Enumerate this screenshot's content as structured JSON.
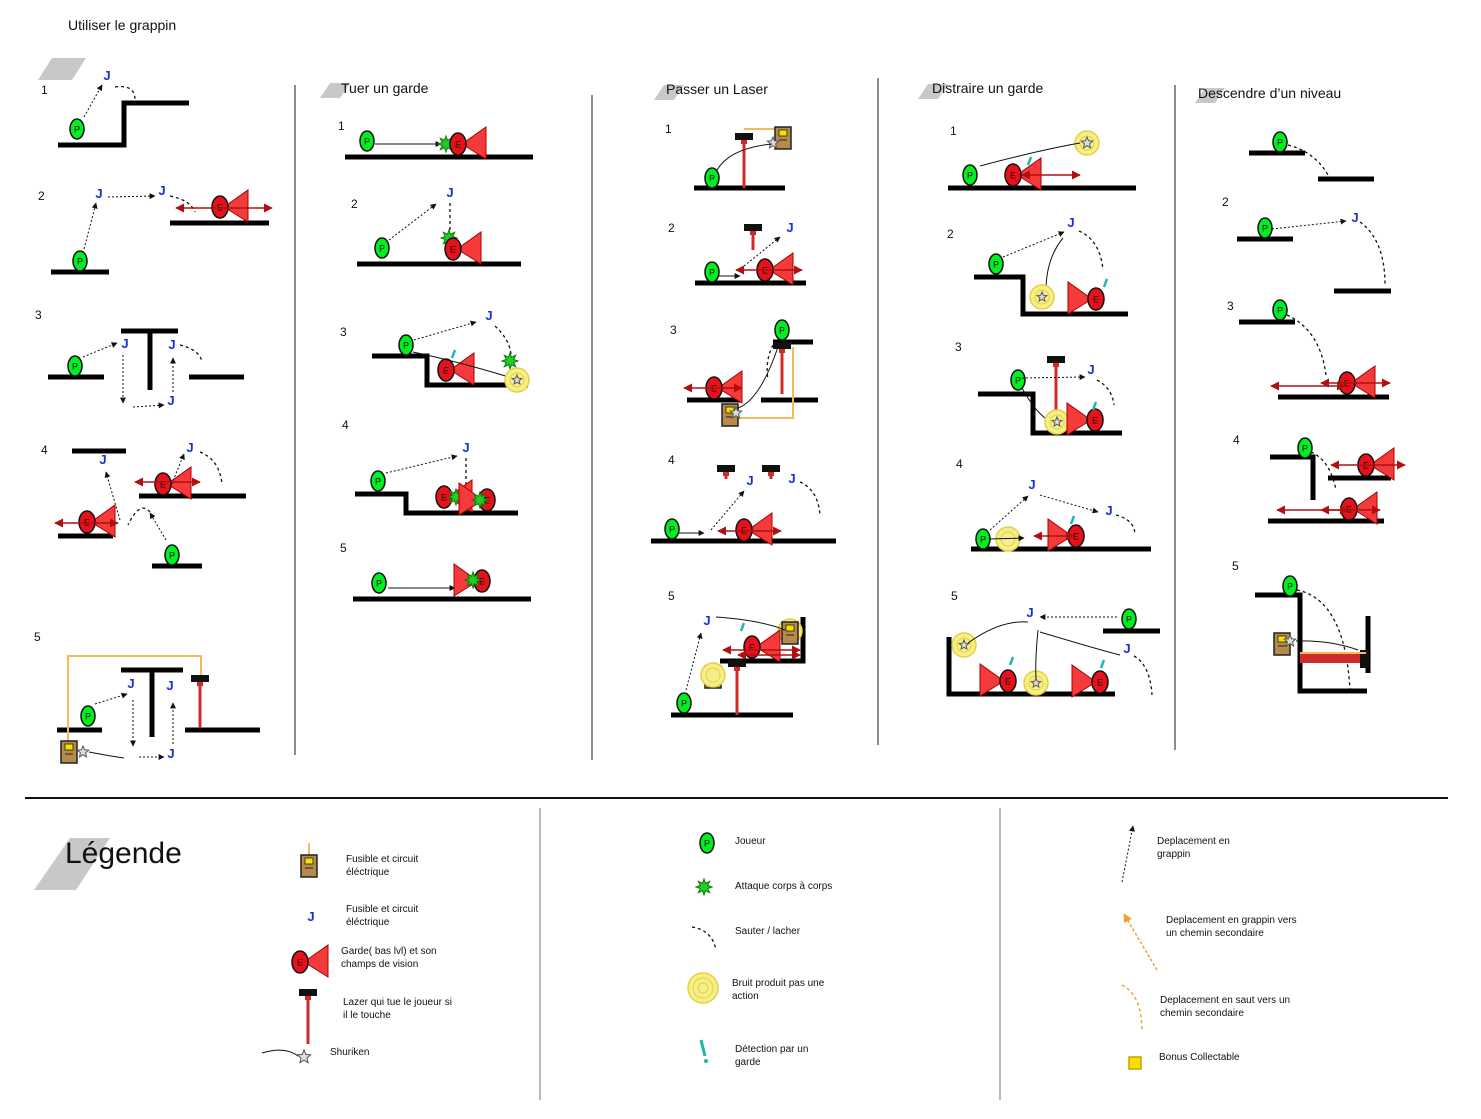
{
  "page_title": "Utiliser le grappin",
  "colors": {
    "player": "#00ee22",
    "guard": "#e8101a",
    "vision_cone": "#f43a3a",
    "grapple_point": "#1a2ee0",
    "laser": "#d22a2a",
    "circuit_wire": "#f5b85a",
    "noise": "#f5ef8a",
    "detection": "#1fb6b0",
    "bonus": "#f5e000",
    "platform": "#000000",
    "section_label_bg": "#c8c8c8"
  },
  "columns": [
    {
      "title": "",
      "steps": [
        "1",
        "2",
        "3",
        "4",
        "5"
      ]
    },
    {
      "title": "Tuer un garde",
      "steps": [
        "1",
        "2",
        "3",
        "4",
        "5"
      ]
    },
    {
      "title": "Passer un Laser",
      "steps": [
        "1",
        "2",
        "3",
        "4",
        "5"
      ]
    },
    {
      "title": "Distraire un garde",
      "steps": [
        "1",
        "2",
        "3",
        "4",
        "5"
      ]
    },
    {
      "title": "Descendre d’un niveau",
      "steps": [
        "2",
        "3",
        "4",
        "5"
      ]
    }
  ],
  "glyphs": {
    "player": "P",
    "guard": "E",
    "grapple": "J"
  },
  "legend": {
    "title": "Légende",
    "items": [
      {
        "icon": "fuse-box-icon",
        "text": "Fusible et circuit éléctrique"
      },
      {
        "icon": "grapple-point-icon",
        "text": "Fusible et circuit éléctrique"
      },
      {
        "icon": "guard-icon",
        "text": "Garde( bas lvl) et son champs de vision"
      },
      {
        "icon": "laser-icon",
        "text": "Lazer qui tue le joueur si il le touche"
      },
      {
        "icon": "shuriken-icon",
        "text": "Shuriken"
      },
      {
        "icon": "player-icon",
        "text": "Joueur"
      },
      {
        "icon": "melee-attack-icon",
        "text": "Attaque corps à corps"
      },
      {
        "icon": "jump-release-icon",
        "text": "Sauter / lacher"
      },
      {
        "icon": "noise-icon",
        "text": "Bruit produit pas une action"
      },
      {
        "icon": "detection-icon",
        "text": "Détection par un garde"
      },
      {
        "icon": "grapple-move-icon",
        "text": "Deplacement en grappin"
      },
      {
        "icon": "grapple-secondary-icon",
        "text": "Deplacement en grappin vers un chemin secondaire"
      },
      {
        "icon": "jump-secondary-icon",
        "text": "Deplacement en saut vers un chemin secondaire"
      },
      {
        "icon": "bonus-icon",
        "text": "Bonus Collectable"
      }
    ]
  }
}
